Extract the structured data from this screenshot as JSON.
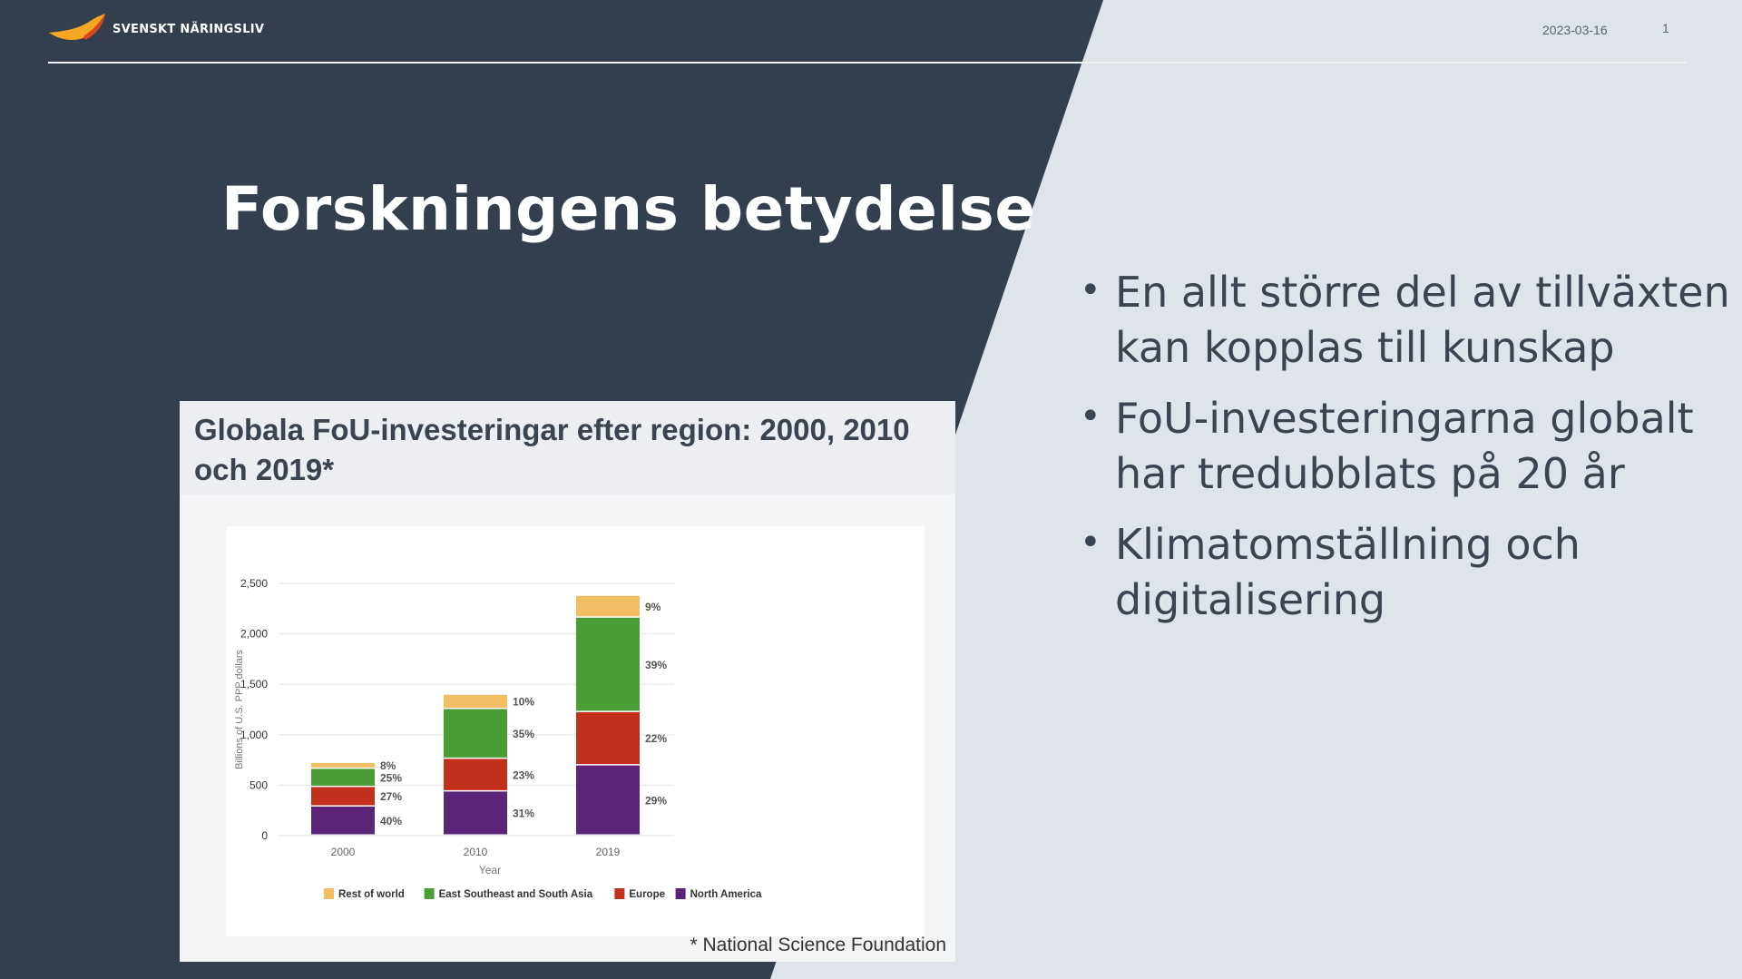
{
  "header": {
    "logo_text": "SVENSKT NÄRINGSLIV",
    "date": "2023-03-16",
    "page_number": "1"
  },
  "slide": {
    "title": "Forskningens betydelse",
    "bullets": [
      "En allt större del av tillväxten kan kopplas till kunskap",
      "FoU-investeringarna globalt har tredubblats på 20 år",
      "Klimatomställning och digitalisering"
    ]
  },
  "colors": {
    "dark_bg": "#333f4c",
    "light_bg": "#dfe3ea"
  },
  "figure": {
    "title": "Globala FoU-investeringar efter region: 2000, 2010 och 2019*",
    "footnote": "* National Science Foundation"
  },
  "chart_data": {
    "type": "bar",
    "stacked": true,
    "categories": [
      "2000",
      "2010",
      "2019"
    ],
    "xlabel": "Year",
    "ylabel": "Billions of U.S. PPP dollars",
    "ylim": [
      0,
      2500
    ],
    "yticks": [
      "0",
      "500",
      "1,000",
      "1,500",
      "2,000",
      "2,500"
    ],
    "grid": true,
    "legend": "bottom",
    "series": [
      {
        "name": "North America",
        "color": "#5b2478",
        "values": [
          288,
          437,
          696
        ],
        "labels": [
          "40%",
          "31%",
          "29%"
        ]
      },
      {
        "name": "Europe",
        "color": "#c0301c",
        "values": [
          194,
          324,
          528
        ],
        "labels": [
          "27%",
          "23%",
          "22%"
        ]
      },
      {
        "name": "East Southeast and South Asia",
        "color": "#4a9e35",
        "values": [
          180,
          494,
          936
        ],
        "labels": [
          "25%",
          "35%",
          "39%"
        ]
      },
      {
        "name": "Rest of world",
        "color": "#f2bd63",
        "values": [
          58,
          141,
          216
        ],
        "labels": [
          "8%",
          "10%",
          "9%"
        ]
      }
    ],
    "legend_order": [
      "Rest of world",
      "East Southeast and South Asia",
      "Europe",
      "North America"
    ]
  }
}
